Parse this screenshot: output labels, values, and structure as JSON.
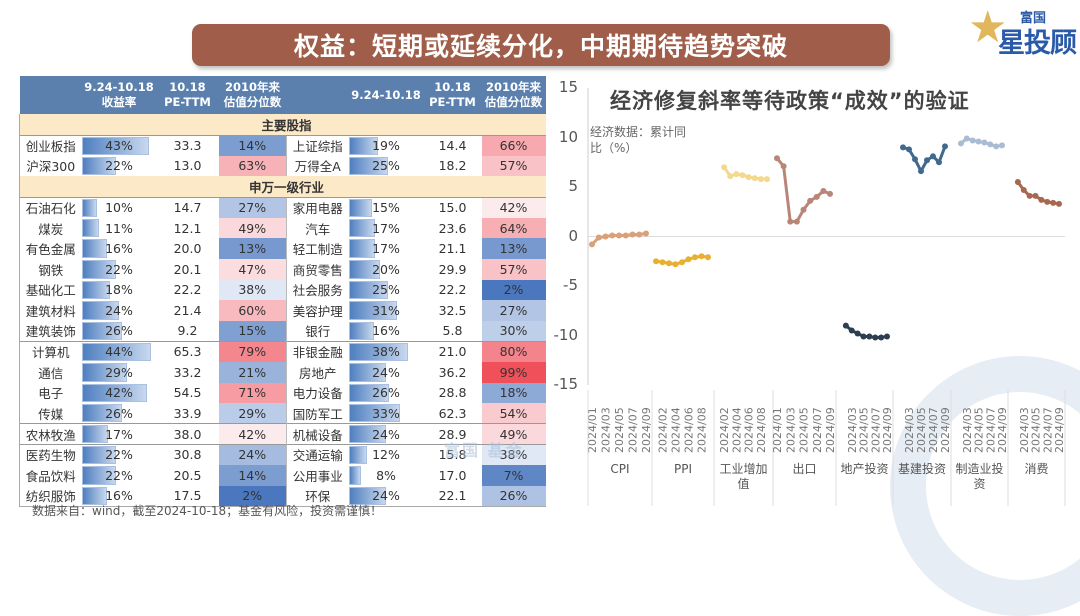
{
  "banner": {
    "title": "权益：短期或延续分化，中期期待趋势突破"
  },
  "logo": {
    "small": "富国",
    "big": "星投顾"
  },
  "table": {
    "headers": [
      {
        "line1": "",
        "line2": ""
      },
      {
        "line1": "9.24-10.18",
        "line2": "收益率"
      },
      {
        "line1": "10.18",
        "line2": "PE-TTM"
      },
      {
        "line1": "2010年来",
        "line2": "估值分位数"
      },
      {
        "line1": "",
        "line2": ""
      },
      {
        "line1": "9.24-10.18",
        "line2": ""
      },
      {
        "line1": "10.18",
        "line2": "PE-TTM"
      },
      {
        "line1": "2010年来",
        "line2": "估值分位数"
      }
    ],
    "section_main": "主要股指",
    "section_sw": "申万一级行业",
    "main_rows": [
      {
        "l_name": "创业板指",
        "l_ret": "43%",
        "l_pe": "33.3",
        "l_pct": "14%",
        "r_name": "上证综指",
        "r_ret": "19%",
        "r_pe": "14.4",
        "r_pct": "66%"
      },
      {
        "l_name": "沪深300",
        "l_ret": "22%",
        "l_pe": "13.0",
        "l_pct": "63%",
        "r_name": "万得全A",
        "r_ret": "25%",
        "r_pe": "18.2",
        "r_pct": "57%"
      }
    ],
    "sw_rows": [
      {
        "l_name": "石油石化",
        "l_ret": "10%",
        "l_pe": "14.7",
        "l_pct": "27%",
        "r_name": "家用电器",
        "r_ret": "15%",
        "r_pe": "15.0",
        "r_pct": "42%"
      },
      {
        "l_name": "煤炭",
        "l_ret": "11%",
        "l_pe": "12.1",
        "l_pct": "49%",
        "r_name": "汽车",
        "r_ret": "17%",
        "r_pe": "23.6",
        "r_pct": "64%"
      },
      {
        "l_name": "有色金属",
        "l_ret": "16%",
        "l_pe": "20.0",
        "l_pct": "13%",
        "r_name": "轻工制造",
        "r_ret": "17%",
        "r_pe": "21.1",
        "r_pct": "13%"
      },
      {
        "l_name": "钢铁",
        "l_ret": "22%",
        "l_pe": "20.1",
        "l_pct": "47%",
        "r_name": "商贸零售",
        "r_ret": "20%",
        "r_pe": "29.9",
        "r_pct": "57%"
      },
      {
        "l_name": "基础化工",
        "l_ret": "18%",
        "l_pe": "22.2",
        "l_pct": "38%",
        "r_name": "社会服务",
        "r_ret": "25%",
        "r_pe": "22.2",
        "r_pct": "2%"
      },
      {
        "l_name": "建筑材料",
        "l_ret": "24%",
        "l_pe": "21.4",
        "l_pct": "60%",
        "r_name": "美容护理",
        "r_ret": "31%",
        "r_pe": "32.5",
        "r_pct": "27%"
      },
      {
        "l_name": "建筑装饰",
        "l_ret": "26%",
        "l_pe": "9.2",
        "l_pct": "15%",
        "r_name": "银行",
        "r_ret": "16%",
        "r_pe": "5.8",
        "r_pct": "30%"
      },
      {
        "l_name": "计算机",
        "l_ret": "44%",
        "l_pe": "65.3",
        "l_pct": "79%",
        "r_name": "非银金融",
        "r_ret": "38%",
        "r_pe": "21.0",
        "r_pct": "80%"
      },
      {
        "l_name": "通信",
        "l_ret": "29%",
        "l_pe": "33.2",
        "l_pct": "21%",
        "r_name": "房地产",
        "r_ret": "24%",
        "r_pe": "36.2",
        "r_pct": "99%"
      },
      {
        "l_name": "电子",
        "l_ret": "42%",
        "l_pe": "54.5",
        "l_pct": "71%",
        "r_name": "电力设备",
        "r_ret": "26%",
        "r_pe": "28.8",
        "r_pct": "18%"
      },
      {
        "l_name": "传媒",
        "l_ret": "26%",
        "l_pe": "33.9",
        "l_pct": "29%",
        "r_name": "国防军工",
        "r_ret": "33%",
        "r_pe": "62.3",
        "r_pct": "54%"
      },
      {
        "l_name": "农林牧渔",
        "l_ret": "17%",
        "l_pe": "38.0",
        "l_pct": "42%",
        "r_name": "机械设备",
        "r_ret": "24%",
        "r_pe": "28.9",
        "r_pct": "49%"
      },
      {
        "l_name": "医药生物",
        "l_ret": "22%",
        "l_pe": "30.8",
        "l_pct": "24%",
        "r_name": "交通运输",
        "r_ret": "12%",
        "r_pe": "15.8",
        "r_pct": "38%"
      },
      {
        "l_name": "食品饮料",
        "l_ret": "22%",
        "l_pe": "20.5",
        "l_pct": "14%",
        "r_name": "公用事业",
        "r_ret": "8%",
        "r_pe": "17.0",
        "r_pct": "7%"
      },
      {
        "l_name": "纺织服饰",
        "l_ret": "16%",
        "l_pe": "17.5",
        "l_pct": "2%",
        "r_name": "环保",
        "r_ret": "24%",
        "r_pe": "22.1",
        "r_pct": "26%"
      }
    ]
  },
  "footer": {
    "note": "数据来自：wind，截至2024-10-18；基金有风险，投资需谨慎！"
  },
  "watermark": {
    "text": "富国 基金"
  },
  "colors": {
    "banner": "#a05e4a",
    "header": "#5b80ad",
    "section": "#fce9c8",
    "low_pct": "#4a77be",
    "high_pct": "#f0505a"
  },
  "chart_data": {
    "type": "line",
    "title": "经济修复斜率等待政策“成效”的验证",
    "ylabel": "经济数据：累计同比（%）",
    "xlabel": "",
    "ylim": [
      -15,
      15
    ],
    "yticks": [
      15,
      10,
      5,
      0,
      -5,
      -10,
      -15
    ],
    "grid": false,
    "legend": "none (categories labeled on x-axis)",
    "categories": [
      "CPI",
      "PPI",
      "工业增加值",
      "出口",
      "地产投资",
      "基建投资",
      "制造业投资",
      "消费"
    ],
    "series": [
      {
        "name": "CPI",
        "color": "#d9a07a",
        "x": [
          "2024/01",
          "2024/02",
          "2024/03",
          "2024/04",
          "2024/05",
          "2024/06",
          "2024/07",
          "2024/08",
          "2024/09"
        ],
        "values": [
          -0.8,
          -0.1,
          0.0,
          0.1,
          0.1,
          0.1,
          0.2,
          0.2,
          0.3
        ]
      },
      {
        "name": "PPI",
        "color": "#e8b030",
        "x": [
          "2024/01",
          "2024/02",
          "2024/03",
          "2024/04",
          "2024/05",
          "2024/06",
          "2024/07",
          "2024/08",
          "2024/09"
        ],
        "values": [
          -2.5,
          -2.6,
          -2.7,
          -2.8,
          -2.6,
          -2.3,
          -2.1,
          -2.0,
          -2.1
        ]
      },
      {
        "name": "工业增加值",
        "color": "#f3d98e",
        "x": [
          "2024/02",
          "2024/03",
          "2024/04",
          "2024/05",
          "2024/06",
          "2024/07",
          "2024/08",
          "2024/09"
        ],
        "values": [
          7.0,
          6.1,
          6.3,
          6.2,
          6.0,
          5.9,
          5.8,
          5.8
        ]
      },
      {
        "name": "出口",
        "color": "#b88577",
        "x": [
          "2024/01",
          "2024/02",
          "2024/03",
          "2024/04",
          "2024/05",
          "2024/06",
          "2024/07",
          "2024/08",
          "2024/09"
        ],
        "values": [
          7.9,
          7.1,
          1.5,
          1.5,
          2.7,
          3.6,
          4.0,
          4.6,
          4.3
        ]
      },
      {
        "name": "地产投资",
        "color": "#2c3e50",
        "x": [
          "2024/02",
          "2024/03",
          "2024/04",
          "2024/05",
          "2024/06",
          "2024/07",
          "2024/08",
          "2024/09"
        ],
        "values": [
          -9.0,
          -9.5,
          -9.8,
          -10.1,
          -10.1,
          -10.2,
          -10.2,
          -10.1
        ]
      },
      {
        "name": "基建投资",
        "color": "#3f6a8e",
        "x": [
          "2024/02",
          "2024/03",
          "2024/04",
          "2024/05",
          "2024/06",
          "2024/07",
          "2024/08",
          "2024/09"
        ],
        "values": [
          9.0,
          8.8,
          7.8,
          6.6,
          7.7,
          8.1,
          7.5,
          9.1
        ]
      },
      {
        "name": "制造业投资",
        "color": "#a9bcd4",
        "x": [
          "2024/02",
          "2024/03",
          "2024/04",
          "2024/05",
          "2024/06",
          "2024/07",
          "2024/08",
          "2024/09"
        ],
        "values": [
          9.4,
          9.9,
          9.7,
          9.6,
          9.5,
          9.3,
          9.1,
          9.2
        ]
      },
      {
        "name": "消费",
        "color": "#a8674f",
        "x": [
          "2024/02",
          "2024/03",
          "2024/04",
          "2024/05",
          "2024/06",
          "2024/07",
          "2024/08",
          "2024/09"
        ],
        "values": [
          5.5,
          4.7,
          4.1,
          4.1,
          3.7,
          3.5,
          3.4,
          3.3
        ]
      }
    ],
    "x_tick_labels": [
      "2024/01",
      "2024/03",
      "2024/05",
      "2024/07",
      "2024/09",
      "2024/02",
      "2024/04",
      "2024/06",
      "2024/08",
      "2024/02",
      "2024/04",
      "2024/06",
      "2024/08",
      "2024/01",
      "2024/03",
      "2024/05",
      "2024/07",
      "2024/09",
      "2024/03",
      "2024/05",
      "2024/07",
      "2024/09",
      "2024/03",
      "2024/05",
      "2024/07",
      "2024/09",
      "2024/03",
      "2024/05",
      "2024/07",
      "2024/09",
      "2024/03",
      "2024/05",
      "2024/07",
      "2024/09"
    ]
  }
}
